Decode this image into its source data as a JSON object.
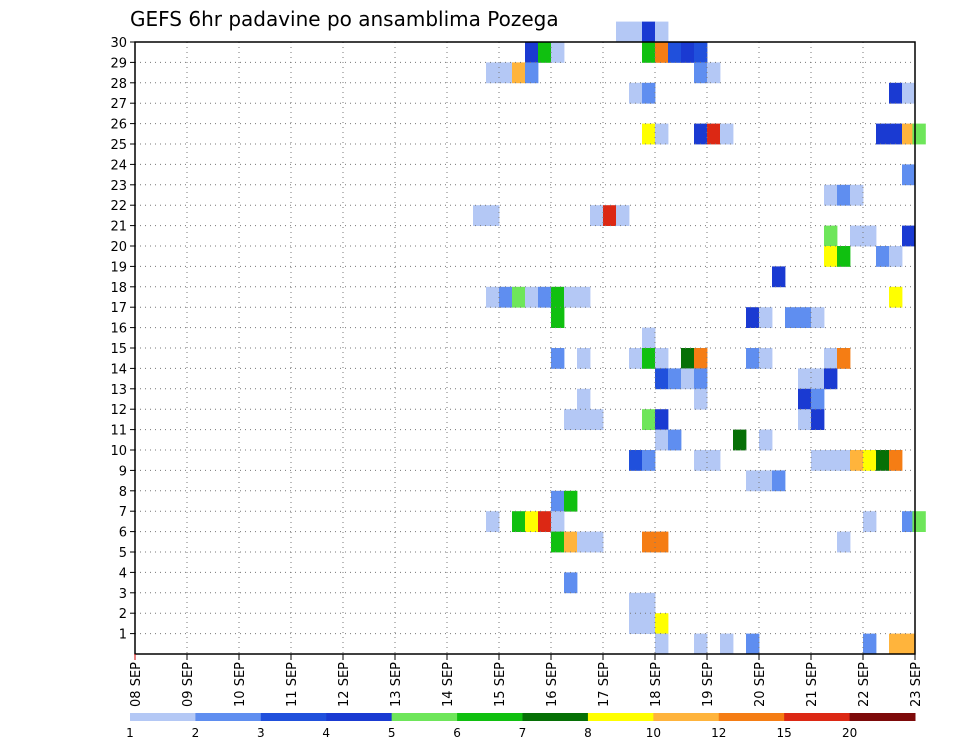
{
  "chart_data": {
    "type": "heatmap",
    "title": "GEFS 6hr padavine po ansamblima Pozega",
    "xlabel": "",
    "ylabel": "",
    "x_tick_labels": [
      "08 SEP",
      "09 SEP",
      "10 SEP",
      "11 SEP",
      "12 SEP",
      "13 SEP",
      "14 SEP",
      "15 SEP",
      "16 SEP",
      "17 SEP",
      "18 SEP",
      "19 SEP",
      "20 SEP",
      "21 SEP",
      "22 SEP",
      "23 SEP"
    ],
    "y_tick_labels": [
      "1",
      "2",
      "3",
      "4",
      "5",
      "6",
      "7",
      "8",
      "9",
      "10",
      "11",
      "12",
      "13",
      "14",
      "15",
      "16",
      "17",
      "18",
      "19",
      "20",
      "21",
      "22",
      "23",
      "24",
      "25",
      "26",
      "27",
      "28",
      "29",
      "30"
    ],
    "x_range_days": [
      0,
      15
    ],
    "y_range": [
      0,
      30
    ],
    "grid": true,
    "legend_placement": "bottom",
    "legend": {
      "labels": [
        "1",
        "2",
        "3",
        "4",
        "5",
        "6",
        "7",
        "8",
        "10",
        "12",
        "15",
        "20"
      ],
      "colors": [
        "#b4c8f5",
        "#5f8ef0",
        "#2050dc",
        "#1a3ad2",
        "#6ee65a",
        "#10c010",
        "#067006",
        "#ffff00",
        "#ffb43c",
        "#f57d14",
        "#dc2814",
        "#7d0a0a"
      ]
    },
    "colors": [
      "#b4c8f5",
      "#5f8ef0",
      "#2050dc",
      "#1a3ad2",
      "#6ee65a",
      "#10c010",
      "#067006",
      "#ffff00",
      "#ffb43c",
      "#f57d14",
      "#dc2814",
      "#7d0a0a"
    ],
    "cells_note_format": "[day_offset_from_08_SEP, ensemble_member, color_index]",
    "cells": [
      [
        9.25,
        30,
        0
      ],
      [
        9.5,
        30,
        0
      ],
      [
        9.75,
        30,
        3
      ],
      [
        10,
        30,
        0
      ],
      [
        7.5,
        29,
        3
      ],
      [
        7.75,
        29,
        5
      ],
      [
        8,
        29,
        0
      ],
      [
        9.75,
        29,
        5
      ],
      [
        10,
        29,
        9
      ],
      [
        10.25,
        29,
        2
      ],
      [
        10.5,
        29,
        3
      ],
      [
        10.75,
        29,
        2
      ],
      [
        6.75,
        28,
        0
      ],
      [
        7,
        28,
        0
      ],
      [
        7.25,
        28,
        8
      ],
      [
        7.5,
        28,
        1
      ],
      [
        10.75,
        28,
        1
      ],
      [
        11,
        28,
        0
      ],
      [
        9.5,
        27,
        0
      ],
      [
        9.75,
        27,
        1
      ],
      [
        14.5,
        27,
        3
      ],
      [
        14.75,
        27,
        0
      ],
      [
        9.75,
        25,
        7
      ],
      [
        10,
        25,
        0
      ],
      [
        10.75,
        25,
        3
      ],
      [
        11,
        25,
        10
      ],
      [
        11.25,
        25,
        0
      ],
      [
        14.25,
        25,
        3
      ],
      [
        14.5,
        25,
        3
      ],
      [
        14.75,
        25,
        8
      ],
      [
        14.95,
        25,
        4
      ],
      [
        14.75,
        23,
        1
      ],
      [
        13.25,
        22,
        0
      ],
      [
        13.5,
        22,
        1
      ],
      [
        13.75,
        22,
        0
      ],
      [
        6.5,
        21,
        0
      ],
      [
        6.75,
        21,
        0
      ],
      [
        8.75,
        21,
        0
      ],
      [
        9,
        21,
        10
      ],
      [
        9.25,
        21,
        0
      ],
      [
        13.25,
        20,
        4
      ],
      [
        13.75,
        20,
        0
      ],
      [
        14,
        20,
        0
      ],
      [
        14.75,
        20,
        3
      ],
      [
        13.25,
        19,
        7
      ],
      [
        13.5,
        19,
        5
      ],
      [
        14.25,
        19,
        1
      ],
      [
        14.5,
        19,
        0
      ],
      [
        12.25,
        18,
        3
      ],
      [
        14.5,
        17,
        7
      ],
      [
        6.75,
        17,
        0
      ],
      [
        7,
        17,
        1
      ],
      [
        7.25,
        17,
        4
      ],
      [
        7.5,
        17,
        0
      ],
      [
        7.75,
        17,
        1
      ],
      [
        8,
        17,
        5
      ],
      [
        8.25,
        17,
        0
      ],
      [
        8.5,
        17,
        0
      ],
      [
        8,
        16,
        5
      ],
      [
        11.75,
        16,
        3
      ],
      [
        12,
        16,
        0
      ],
      [
        12.5,
        16,
        1
      ],
      [
        12.75,
        16,
        1
      ],
      [
        13,
        16,
        0
      ],
      [
        9.75,
        15,
        0
      ],
      [
        8,
        14,
        1
      ],
      [
        8.5,
        14,
        0
      ],
      [
        9.5,
        14,
        0
      ],
      [
        9.75,
        14,
        5
      ],
      [
        10,
        14,
        0
      ],
      [
        10.5,
        14,
        6
      ],
      [
        10.75,
        14,
        9
      ],
      [
        11.75,
        14,
        1
      ],
      [
        12,
        14,
        0
      ],
      [
        13.25,
        14,
        0
      ],
      [
        13.5,
        14,
        9
      ],
      [
        10,
        13,
        2
      ],
      [
        10.25,
        13,
        1
      ],
      [
        10.5,
        13,
        0
      ],
      [
        10.75,
        13,
        1
      ],
      [
        12.75,
        13,
        0
      ],
      [
        13,
        13,
        0
      ],
      [
        13.25,
        13,
        3
      ],
      [
        8.5,
        12,
        0
      ],
      [
        10.75,
        12,
        0
      ],
      [
        12.75,
        12,
        3
      ],
      [
        13,
        12,
        1
      ],
      [
        8.25,
        11,
        0
      ],
      [
        8.5,
        11,
        0
      ],
      [
        8.75,
        11,
        0
      ],
      [
        9.75,
        11,
        4
      ],
      [
        10,
        11,
        3
      ],
      [
        12.75,
        11,
        0
      ],
      [
        13,
        11,
        3
      ],
      [
        10,
        10,
        0
      ],
      [
        10.25,
        10,
        1
      ],
      [
        11.5,
        10,
        6
      ],
      [
        12,
        10,
        0
      ],
      [
        9.5,
        9,
        2
      ],
      [
        9.75,
        9,
        1
      ],
      [
        10.75,
        9,
        0
      ],
      [
        11,
        9,
        0
      ],
      [
        13,
        9,
        0
      ],
      [
        13.25,
        9,
        0
      ],
      [
        13.5,
        9,
        0
      ],
      [
        13.75,
        9,
        8
      ],
      [
        14,
        9,
        7
      ],
      [
        14.25,
        9,
        6
      ],
      [
        14.5,
        9,
        9
      ],
      [
        11.75,
        8,
        0
      ],
      [
        12,
        8,
        0
      ],
      [
        12.25,
        8,
        1
      ],
      [
        8,
        7,
        1
      ],
      [
        8.25,
        7,
        5
      ],
      [
        6.75,
        6,
        0
      ],
      [
        7.25,
        6,
        5
      ],
      [
        7.5,
        6,
        7
      ],
      [
        7.75,
        6,
        10
      ],
      [
        8,
        6,
        0
      ],
      [
        14.75,
        6,
        1
      ],
      [
        14.95,
        6,
        4
      ],
      [
        14,
        6,
        0
      ],
      [
        8,
        5,
        5
      ],
      [
        8.25,
        5,
        8
      ],
      [
        8.5,
        5,
        0
      ],
      [
        8.75,
        5,
        0
      ],
      [
        9.75,
        5,
        9
      ],
      [
        10,
        5,
        9
      ],
      [
        13.5,
        5,
        0
      ],
      [
        8.25,
        3,
        1
      ],
      [
        9.5,
        2,
        0
      ],
      [
        9.75,
        2,
        0
      ],
      [
        9.5,
        1,
        0
      ],
      [
        9.75,
        1,
        0
      ],
      [
        10,
        1,
        7
      ],
      [
        10,
        0,
        0
      ],
      [
        10.75,
        0,
        0
      ],
      [
        11.25,
        0,
        0
      ],
      [
        11.75,
        0,
        1
      ],
      [
        14,
        0,
        1
      ],
      [
        14.5,
        0,
        8
      ],
      [
        14.75,
        0,
        8
      ]
    ]
  }
}
